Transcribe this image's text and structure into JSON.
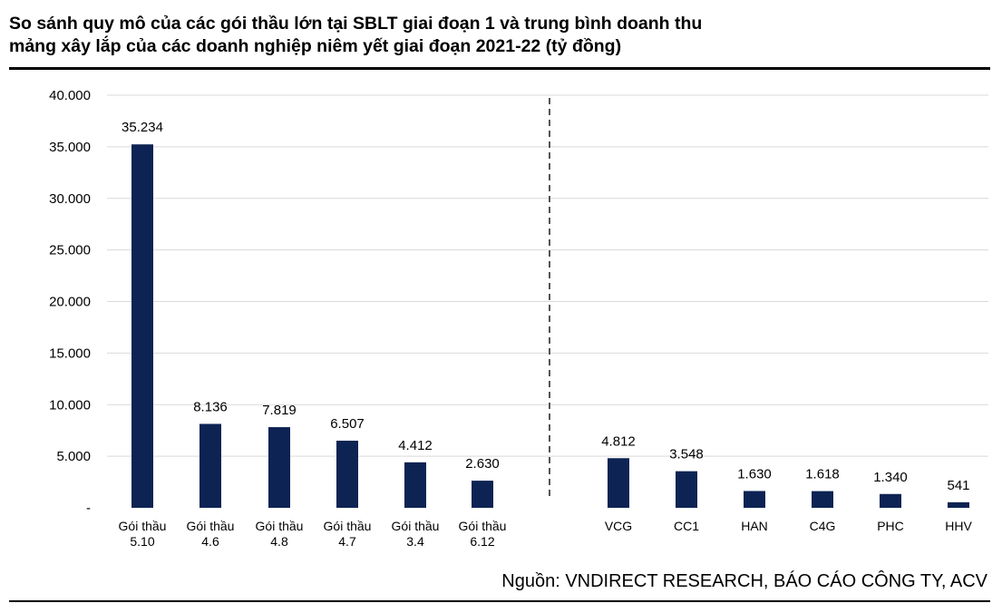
{
  "title_line1": "So sánh quy mô của các gói thầu lớn tại SBLT giai đoạn 1 và trung bình doanh thu",
  "title_line2": "mảng xây lắp của các doanh nghiệp niêm yết giai đoạn 2021-22 (tỷ đồng)",
  "source": "Nguồn: VNDIRECT RESEARCH, BÁO CÁO CÔNG TY, ACV",
  "colors": {
    "bar": "#0d2353",
    "grid": "#d9d9d9",
    "divider": "#555555"
  },
  "chart_data": {
    "type": "bar",
    "title": "So sánh quy mô của các gói thầu lớn tại SBLT giai đoạn 1 và trung bình doanh thu mảng xây lắp của các doanh nghiệp niêm yết giai đoạn 2021-22 (tỷ đồng)",
    "ylim": [
      0,
      40000
    ],
    "yticks": [
      0,
      5000,
      10000,
      15000,
      20000,
      25000,
      30000,
      35000,
      40000
    ],
    "ytick_labels": [
      "-",
      "5.000",
      "10.000",
      "15.000",
      "20.000",
      "25.000",
      "30.000",
      "35.000",
      "40.000"
    ],
    "grid": true,
    "divider": "dashed vertical line between the two groups",
    "groups": [
      {
        "categories": [
          [
            "Gói thầu",
            "5.10"
          ],
          [
            "Gói thầu",
            "4.6"
          ],
          [
            "Gói thầu",
            "4.8"
          ],
          [
            "Gói thầu",
            "4.7"
          ],
          [
            "Gói thầu",
            "3.4"
          ],
          [
            "Gói thầu",
            "6.12"
          ]
        ],
        "values": [
          35234,
          8136,
          7819,
          6507,
          4412,
          2630
        ],
        "value_labels": [
          "35.234",
          "8.136",
          "7.819",
          "6.507",
          "4.412",
          "2.630"
        ]
      },
      {
        "categories": [
          [
            "VCG"
          ],
          [
            "CC1"
          ],
          [
            "HAN"
          ],
          [
            "C4G"
          ],
          [
            "PHC"
          ],
          [
            "HHV"
          ]
        ],
        "values": [
          4812,
          3548,
          1630,
          1618,
          1340,
          541
        ],
        "value_labels": [
          "4.812",
          "3.548",
          "1.630",
          "1.618",
          "1.340",
          "541"
        ]
      }
    ]
  }
}
